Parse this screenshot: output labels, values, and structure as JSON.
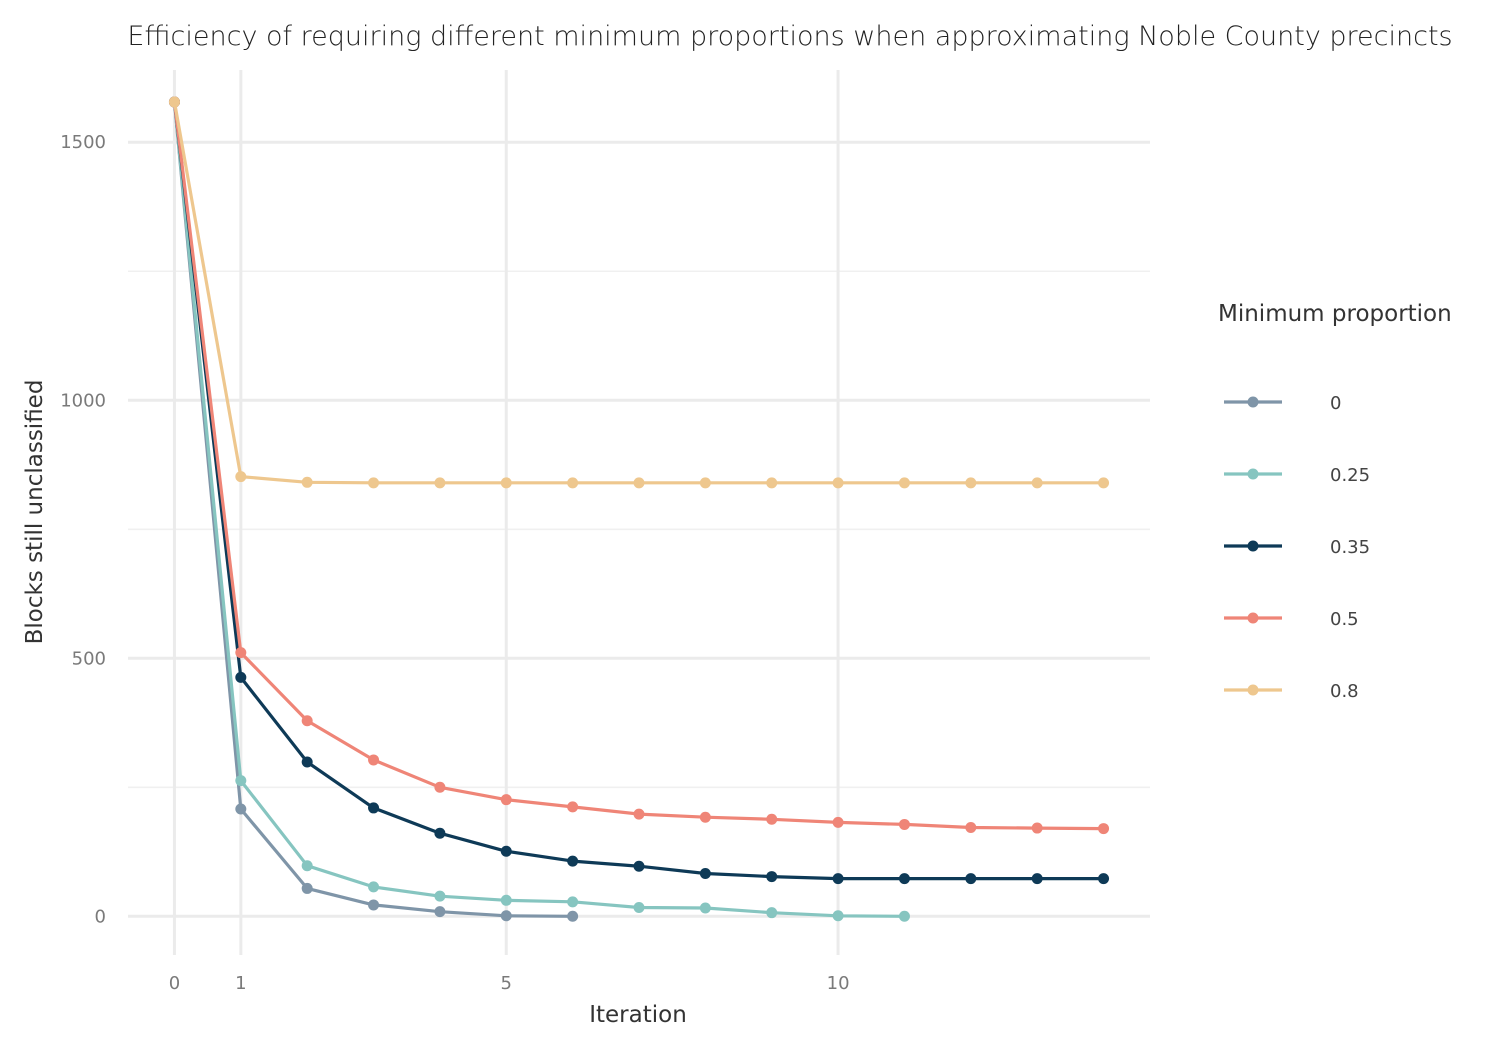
{
  "chart_data": {
    "type": "line",
    "title": "Efficiency of requiring different minimum proportions when approximating Noble County precincts",
    "xlabel": "Iteration",
    "ylabel": "Blocks still unclassified",
    "xlim": [
      -0.7,
      14.7
    ],
    "ylim": [
      -75,
      1640
    ],
    "x_ticks": [
      0,
      1,
      5,
      10
    ],
    "y_ticks": [
      0,
      500,
      1000,
      1500
    ],
    "y_minor_ticks": [
      250,
      750,
      1250
    ],
    "grid": true,
    "legend": {
      "title": "Minimum proportion",
      "position": "right"
    },
    "series": [
      {
        "name": "0",
        "color": "#7f95a8",
        "x": [
          0,
          1,
          2,
          3,
          4,
          5,
          6
        ],
        "y": [
          1578,
          208,
          54,
          22,
          9,
          1,
          0
        ]
      },
      {
        "name": "0.25",
        "color": "#86c5c0",
        "x": [
          0,
          1,
          2,
          3,
          4,
          5,
          6,
          7,
          8,
          9,
          10,
          11
        ],
        "y": [
          1578,
          263,
          98,
          57,
          39,
          31,
          28,
          17,
          16,
          7,
          1,
          0
        ]
      },
      {
        "name": "0.35",
        "color": "#0e3a57",
        "x": [
          0,
          1,
          2,
          3,
          4,
          5,
          6,
          7,
          8,
          9,
          10,
          11,
          12,
          13,
          14
        ],
        "y": [
          1578,
          463,
          299,
          210,
          161,
          126,
          107,
          97,
          83,
          77,
          73,
          73,
          73,
          73,
          73
        ]
      },
      {
        "name": "0.5",
        "color": "#ef8577",
        "x": [
          0,
          1,
          2,
          3,
          4,
          5,
          6,
          7,
          8,
          9,
          10,
          11,
          12,
          13,
          14
        ],
        "y": [
          1578,
          511,
          379,
          303,
          250,
          226,
          212,
          198,
          192,
          188,
          182,
          178,
          172,
          171,
          170
        ]
      },
      {
        "name": "0.8",
        "color": "#eec78e",
        "x": [
          0,
          1,
          2,
          3,
          4,
          5,
          6,
          7,
          8,
          9,
          10,
          11,
          12,
          13,
          14
        ],
        "y": [
          1578,
          852,
          841,
          840,
          840,
          840,
          840,
          840,
          840,
          840,
          840,
          840,
          840,
          840,
          840
        ]
      }
    ]
  }
}
